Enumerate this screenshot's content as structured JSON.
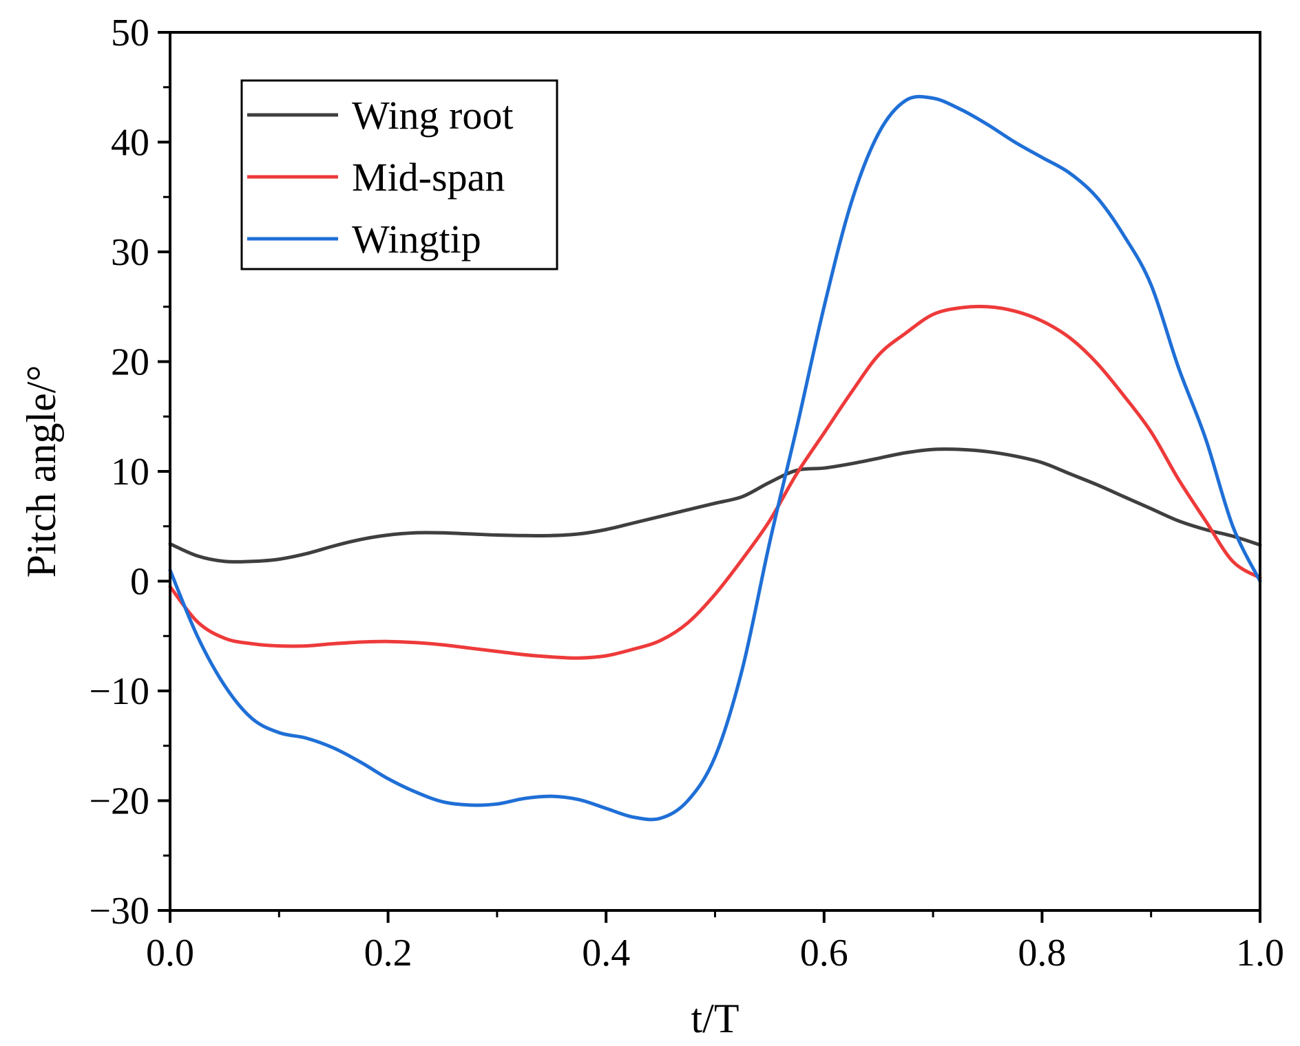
{
  "chart_data": {
    "type": "line",
    "title": "",
    "xlabel": "t/T",
    "ylabel": "Pitch angle/°",
    "xlim": [
      0.0,
      1.0
    ],
    "ylim": [
      -30,
      50
    ],
    "xticks": [
      0.0,
      0.2,
      0.4,
      0.6,
      0.8,
      1.0
    ],
    "xtick_labels": [
      "0.0",
      "0.2",
      "0.4",
      "0.6",
      "0.8",
      "1.0"
    ],
    "yticks": [
      -30,
      -20,
      -10,
      0,
      10,
      20,
      30,
      40,
      50
    ],
    "ytick_labels": [
      "−30",
      "−20",
      "−10",
      "0",
      "10",
      "20",
      "30",
      "40",
      "50"
    ],
    "grid": false,
    "legend_position": "top-left",
    "series": [
      {
        "name": "Wing root",
        "color": "#3f3f3f",
        "x": [
          0.0,
          0.025,
          0.05,
          0.075,
          0.1,
          0.125,
          0.15,
          0.175,
          0.2,
          0.225,
          0.25,
          0.275,
          0.3,
          0.325,
          0.35,
          0.375,
          0.4,
          0.425,
          0.45,
          0.475,
          0.5,
          0.525,
          0.55,
          0.575,
          0.6,
          0.625,
          0.65,
          0.675,
          0.7,
          0.725,
          0.75,
          0.775,
          0.8,
          0.825,
          0.85,
          0.875,
          0.9,
          0.925,
          0.95,
          0.975,
          1.0
        ],
        "values": [
          3.4,
          2.3,
          1.8,
          1.8,
          2.0,
          2.5,
          3.2,
          3.8,
          4.2,
          4.4,
          4.4,
          4.3,
          4.2,
          4.15,
          4.15,
          4.3,
          4.7,
          5.3,
          5.9,
          6.5,
          7.1,
          7.7,
          9.0,
          10.1,
          10.3,
          10.7,
          11.2,
          11.7,
          12.0,
          12.0,
          11.8,
          11.4,
          10.8,
          9.8,
          8.8,
          7.7,
          6.6,
          5.5,
          4.7,
          4.1,
          3.3
        ]
      },
      {
        "name": "Mid-span",
        "color": "#ee3a3a",
        "x": [
          0.0,
          0.025,
          0.05,
          0.075,
          0.1,
          0.125,
          0.15,
          0.175,
          0.2,
          0.225,
          0.25,
          0.275,
          0.3,
          0.325,
          0.35,
          0.375,
          0.4,
          0.425,
          0.45,
          0.475,
          0.5,
          0.525,
          0.55,
          0.575,
          0.6,
          0.625,
          0.65,
          0.675,
          0.7,
          0.725,
          0.75,
          0.775,
          0.8,
          0.825,
          0.85,
          0.875,
          0.9,
          0.925,
          0.95,
          0.975,
          1.0
        ],
        "values": [
          -0.5,
          -3.7,
          -5.2,
          -5.7,
          -5.9,
          -5.9,
          -5.7,
          -5.55,
          -5.5,
          -5.6,
          -5.8,
          -6.1,
          -6.4,
          -6.7,
          -6.9,
          -7.0,
          -6.8,
          -6.2,
          -5.4,
          -3.8,
          -1.2,
          2.0,
          5.5,
          9.8,
          13.5,
          17.2,
          20.6,
          22.6,
          24.3,
          24.9,
          25.0,
          24.6,
          23.7,
          22.2,
          19.9,
          16.9,
          13.6,
          9.3,
          5.5,
          1.8,
          0.3
        ]
      },
      {
        "name": "Wingtip",
        "color": "#1f6fd6",
        "x": [
          0.0,
          0.025,
          0.05,
          0.075,
          0.1,
          0.125,
          0.15,
          0.175,
          0.2,
          0.225,
          0.25,
          0.275,
          0.3,
          0.325,
          0.35,
          0.375,
          0.4,
          0.425,
          0.45,
          0.475,
          0.5,
          0.525,
          0.55,
          0.575,
          0.6,
          0.625,
          0.65,
          0.675,
          0.7,
          0.725,
          0.75,
          0.775,
          0.8,
          0.825,
          0.85,
          0.875,
          0.9,
          0.925,
          0.95,
          0.975,
          1.0
        ],
        "values": [
          1.0,
          -5.0,
          -9.5,
          -12.5,
          -13.8,
          -14.3,
          -15.2,
          -16.5,
          -18.0,
          -19.2,
          -20.1,
          -20.4,
          -20.3,
          -19.8,
          -19.6,
          -19.9,
          -20.7,
          -21.5,
          -21.6,
          -20.0,
          -16.0,
          -8.0,
          3.5,
          14.0,
          25.0,
          34.5,
          40.8,
          43.8,
          44.0,
          43.0,
          41.6,
          40.0,
          38.6,
          37.2,
          35.0,
          31.5,
          27.0,
          19.5,
          13.0,
          5.0,
          0.0
        ]
      }
    ]
  }
}
